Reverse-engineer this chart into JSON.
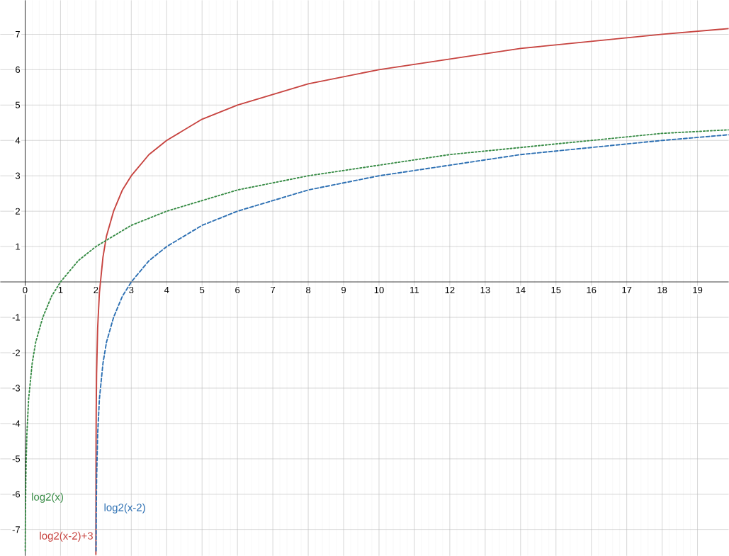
{
  "chart_data": {
    "type": "line",
    "xlim": [
      -0.7,
      19.88
    ],
    "ylim": [
      -7.74,
      7.96
    ],
    "xticks": [
      0,
      1,
      2,
      3,
      4,
      5,
      6,
      7,
      8,
      9,
      10,
      11,
      12,
      13,
      14,
      15,
      16,
      17,
      18,
      19
    ],
    "yticks": [
      -7,
      -6,
      -5,
      -4,
      -3,
      -2,
      -1,
      1,
      2,
      3,
      4,
      5,
      6,
      7
    ],
    "grid": true,
    "legend": false,
    "marker": "none",
    "series": [
      {
        "name": "log2(x)",
        "color": "#388c46",
        "line_style": "dotted",
        "x": [
          0.005,
          0.01,
          0.02,
          0.03,
          0.05,
          0.1,
          0.2,
          0.3,
          0.5,
          0.75,
          1,
          1.5,
          2,
          3,
          4,
          5,
          6,
          8,
          10,
          12,
          14,
          16,
          18,
          19.88
        ],
        "values": [
          -7.6,
          -6.6,
          -5.6,
          -5.1,
          -4.3,
          -3.3,
          -2.3,
          -1.7,
          -1,
          -0.4,
          0,
          0.6,
          1,
          1.6,
          2,
          2.3,
          2.6,
          3,
          3.3,
          3.6,
          3.8,
          4,
          4.2,
          4.3
        ]
      },
      {
        "name": "log2(x-2)",
        "color": "#2d70b3",
        "line_style": "dashed",
        "x": [
          2.005,
          2.01,
          2.02,
          2.05,
          2.1,
          2.2,
          2.3,
          2.5,
          2.75,
          3,
          3.5,
          4,
          5,
          6,
          7,
          8,
          10,
          12,
          14,
          16,
          18,
          19.88
        ],
        "values": [
          -7.6,
          -6.6,
          -5.6,
          -4.3,
          -3.3,
          -2.3,
          -1.7,
          -1,
          -0.4,
          0,
          0.6,
          1,
          1.6,
          2,
          2.3,
          2.6,
          3,
          3.3,
          3.6,
          3.8,
          4,
          4.16
        ]
      },
      {
        "name": "log2(x-2)+3",
        "color": "#c74440",
        "line_style": "solid",
        "x": [
          2.0006,
          2.001,
          2.002,
          2.005,
          2.01,
          2.02,
          2.05,
          2.1,
          2.2,
          2.3,
          2.5,
          2.75,
          3,
          3.5,
          4,
          5,
          6,
          8,
          10,
          12,
          14,
          16,
          18,
          19.88
        ],
        "values": [
          -7.7,
          -7,
          -6,
          -4.6,
          -3.6,
          -2.6,
          -1.3,
          -0.3,
          0.7,
          1.3,
          2,
          2.6,
          3,
          3.6,
          4,
          4.6,
          5,
          5.6,
          6,
          6.3,
          6.6,
          6.8,
          7,
          7.16
        ]
      }
    ]
  }
}
